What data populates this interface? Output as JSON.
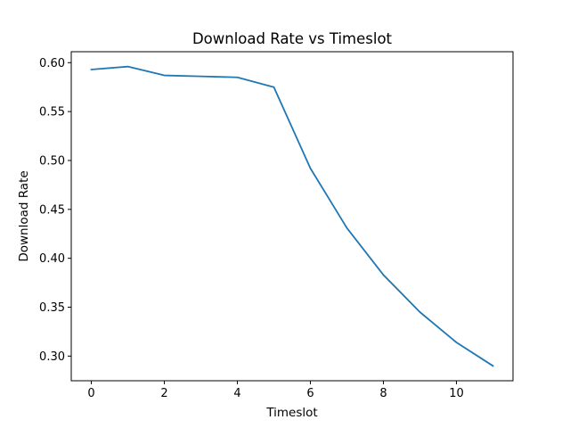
{
  "chart_data": {
    "type": "line",
    "title": "Download Rate vs Timeslot",
    "xlabel": "Timeslot",
    "ylabel": "Download Rate",
    "x": [
      0,
      1,
      2,
      3,
      4,
      5,
      6,
      7,
      8,
      9,
      10,
      11
    ],
    "series": [
      {
        "values": [
          0.593,
          0.596,
          0.587,
          0.586,
          0.585,
          0.575,
          0.492,
          0.431,
          0.383,
          0.345,
          0.314,
          0.29
        ]
      }
    ],
    "xlim": [
      -0.55,
      11.55
    ],
    "ylim": [
      0.2748,
      0.6112
    ],
    "xticks": [
      0,
      2,
      4,
      6,
      8,
      10
    ],
    "xtick_labels": [
      "0",
      "2",
      "4",
      "6",
      "8",
      "10"
    ],
    "yticks": [
      0.3,
      0.35,
      0.4,
      0.45,
      0.5,
      0.55,
      0.6
    ],
    "ytick_labels": [
      "0.30",
      "0.35",
      "0.40",
      "0.45",
      "0.50",
      "0.55",
      "0.60"
    ],
    "grid": false,
    "legend": "none",
    "line_color": "#1f77b4"
  }
}
